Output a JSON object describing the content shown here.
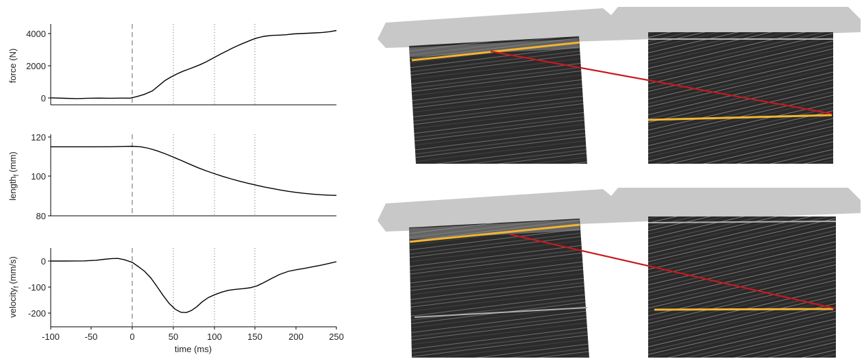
{
  "chart_data": [
    {
      "type": "line",
      "panel": "force",
      "ylabel": "force (N)",
      "xlim": [
        -100,
        250
      ],
      "ylim": [
        -500,
        4500
      ],
      "yticks": [
        0,
        2000,
        4000
      ],
      "ytick_labels": [
        "0",
        "2000",
        "4000"
      ],
      "onset_line_x": 0,
      "reference_lines_x": [
        50,
        100,
        150
      ],
      "series": [
        {
          "x": [
            -100,
            -80,
            -60,
            -40,
            -20,
            0,
            10,
            20,
            30,
            40,
            50,
            60,
            70,
            80,
            90,
            100,
            110,
            120,
            130,
            140,
            150,
            160,
            170,
            180,
            190,
            200,
            210,
            220,
            230,
            240,
            250
          ],
          "values": [
            50,
            40,
            30,
            40,
            50,
            60,
            150,
            350,
            700,
            1150,
            1400,
            1650,
            1900,
            2100,
            2300,
            2550,
            2850,
            3150,
            3450,
            3700,
            3850,
            3900,
            3950,
            3950,
            3980,
            4000,
            4050,
            4100,
            4150,
            4200,
            4280
          ]
        }
      ]
    },
    {
      "type": "line",
      "panel": "length",
      "ylabel": "length",
      "ylabel_subscript": "f",
      "ylabel_unit": "(mm)",
      "xlim": [
        -100,
        250
      ],
      "ylim": [
        80,
        120
      ],
      "yticks": [
        80,
        100,
        120
      ],
      "ytick_labels": [
        "80",
        "100",
        "120"
      ],
      "onset_line_x": 0,
      "reference_lines_x": [
        50,
        100,
        150
      ],
      "series": [
        {
          "x": [
            -100,
            -80,
            -60,
            -40,
            -20,
            0,
            10,
            20,
            30,
            40,
            50,
            60,
            70,
            80,
            90,
            100,
            110,
            120,
            130,
            140,
            150,
            160,
            170,
            180,
            190,
            200,
            210,
            220,
            230,
            240,
            250
          ],
          "values": [
            115,
            115,
            115,
            115,
            115.2,
            115.5,
            115.3,
            114.6,
            113.5,
            112.1,
            110.5,
            108.8,
            107.0,
            105.2,
            103.4,
            101.8,
            100.4,
            99.1,
            97.9,
            96.8,
            95.8,
            94.9,
            94.0,
            93.2,
            92.5,
            91.9,
            91.4,
            91.0,
            90.7,
            90.5,
            90.4
          ]
        }
      ]
    },
    {
      "type": "line",
      "panel": "velocity",
      "ylabel": "velocity",
      "ylabel_subscript": "f",
      "ylabel_unit": "(mm/s)",
      "xlabel": "time (ms)",
      "xlim": [
        -100,
        250
      ],
      "ylim": [
        -250,
        50
      ],
      "yticks": [
        -200,
        -100,
        0
      ],
      "ytick_labels": [
        "-200",
        "-100",
        "0"
      ],
      "xticks": [
        -100,
        -50,
        0,
        50,
        100,
        150,
        200,
        250
      ],
      "xtick_labels": [
        "-100",
        "-50",
        "0",
        "50",
        "100",
        "150",
        "200",
        "250"
      ],
      "onset_line_x": 0,
      "reference_lines_x": [
        50,
        100,
        150
      ],
      "series": [
        {
          "x": [
            -100,
            -80,
            -60,
            -40,
            -30,
            -20,
            -10,
            0,
            10,
            20,
            30,
            40,
            50,
            60,
            70,
            80,
            90,
            100,
            110,
            120,
            130,
            140,
            150,
            160,
            170,
            180,
            190,
            200,
            210,
            220,
            230,
            240,
            250
          ],
          "values": [
            0,
            0,
            2,
            6,
            8,
            8,
            0,
            -18,
            -40,
            -70,
            -110,
            -150,
            -185,
            -198,
            -192,
            -170,
            -150,
            -132,
            -120,
            -112,
            -108,
            -104,
            -98,
            -85,
            -70,
            -56,
            -46,
            -38,
            -33,
            -26,
            -20,
            -13,
            -5
          ]
        }
      ]
    }
  ],
  "ultrasound": {
    "aponeurosis_color": "#f2b533",
    "fascicle_color": "#c8191f",
    "probe_color": "#c8c8c8",
    "background_color": "#ffffff"
  }
}
